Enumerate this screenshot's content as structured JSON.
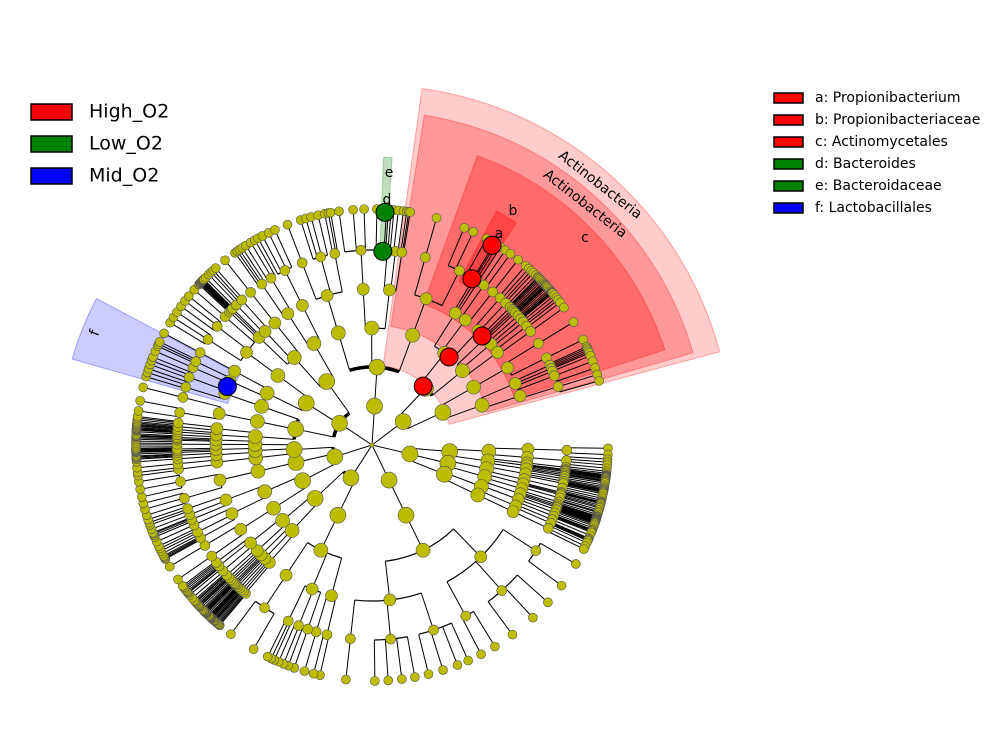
{
  "legend": {
    "items": [
      {
        "label": "High_O2",
        "color": "#ff0000"
      },
      {
        "label": "Low_O2",
        "color": "#008000"
      },
      {
        "label": "Mid_O2",
        "color": "#0000ff"
      }
    ]
  },
  "key": {
    "items": [
      {
        "label": "a: Propionibacterium",
        "color": "#ff0000"
      },
      {
        "label": "b: Propionibacteriaceae",
        "color": "#ff0000"
      },
      {
        "label": "c: Actinomycetales",
        "color": "#ff0000"
      },
      {
        "label": "d: Bacteroides",
        "color": "#008000"
      },
      {
        "label": "e: Bacteroidaceae",
        "color": "#008000"
      },
      {
        "label": "f: Lactobacillales",
        "color": "#0000ff"
      }
    ]
  },
  "clade_labels": [
    "Actinobacteria",
    "Actinobacteria",
    "a",
    "b",
    "c",
    "d",
    "e",
    "f"
  ]
}
